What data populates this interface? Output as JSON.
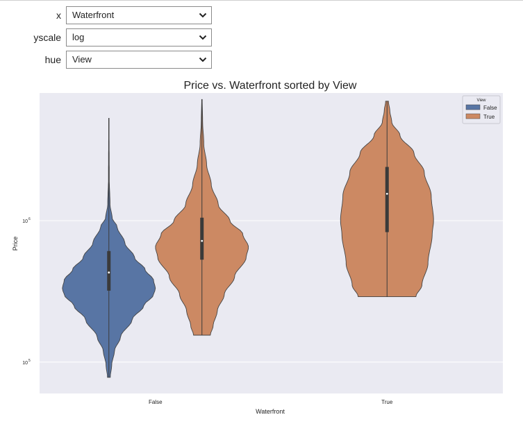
{
  "controls": [
    {
      "label": "x",
      "value": "Waterfront"
    },
    {
      "label": "yscale",
      "value": "log"
    },
    {
      "label": "hue",
      "value": "View"
    }
  ],
  "chart_data": {
    "type": "violin",
    "title": "Price vs. Waterfront sorted by View",
    "xlabel": "Waterfront",
    "ylabel": "Price",
    "yscale": "log",
    "ylim": [
      60000,
      8000000
    ],
    "yticks": [
      {
        "value": 100000,
        "base": "10",
        "exp": "5"
      },
      {
        "value": 1000000,
        "base": "10",
        "exp": "6"
      }
    ],
    "categories": [
      "False",
      "True"
    ],
    "grid": true,
    "legend": {
      "title": "View",
      "position": "top-right",
      "entries": [
        "False",
        "True"
      ]
    },
    "colors": {
      "False": "#5875a4",
      "True": "#cc8963",
      "background": "#eaeaf2"
    },
    "violins": [
      {
        "category": "False",
        "hue": "False",
        "min": 78000,
        "max": 5300000,
        "q1": 320000,
        "median": 430000,
        "q3": 610000,
        "profile": [
          [
            78000,
            0.03
          ],
          [
            95000,
            0.06
          ],
          [
            120000,
            0.12
          ],
          [
            150000,
            0.25
          ],
          [
            200000,
            0.5
          ],
          [
            250000,
            0.75
          ],
          [
            300000,
            0.96
          ],
          [
            330000,
            1.0
          ],
          [
            380000,
            0.96
          ],
          [
            450000,
            0.78
          ],
          [
            550000,
            0.55
          ],
          [
            700000,
            0.34
          ],
          [
            900000,
            0.18
          ],
          [
            1050000,
            0.07
          ],
          [
            1300000,
            0.025
          ],
          [
            2000000,
            0.008
          ],
          [
            5300000,
            0.003
          ]
        ]
      },
      {
        "category": "False",
        "hue": "True",
        "min": 155000,
        "max": 7200000,
        "q1": 530000,
        "median": 720000,
        "q3": 1050000,
        "profile": [
          [
            155000,
            0.18
          ],
          [
            180000,
            0.24
          ],
          [
            230000,
            0.33
          ],
          [
            300000,
            0.48
          ],
          [
            400000,
            0.7
          ],
          [
            550000,
            0.95
          ],
          [
            650000,
            1.0
          ],
          [
            800000,
            0.88
          ],
          [
            1000000,
            0.6
          ],
          [
            1300000,
            0.35
          ],
          [
            1800000,
            0.2
          ],
          [
            2500000,
            0.1
          ],
          [
            3500000,
            0.04
          ],
          [
            5000000,
            0.015
          ],
          [
            7200000,
            0.005
          ]
        ]
      },
      {
        "category": "True",
        "hue": "True",
        "min": 290000,
        "max": 7000000,
        "q1": 830000,
        "median": 1550000,
        "q3": 2400000,
        "profile": [
          [
            290000,
            0.62
          ],
          [
            350000,
            0.75
          ],
          [
            500000,
            0.88
          ],
          [
            800000,
            0.97
          ],
          [
            1000000,
            1.0
          ],
          [
            1500000,
            0.95
          ],
          [
            2200000,
            0.8
          ],
          [
            3000000,
            0.58
          ],
          [
            4000000,
            0.28
          ],
          [
            5000000,
            0.1
          ],
          [
            6000000,
            0.06
          ],
          [
            7000000,
            0.03
          ]
        ]
      }
    ]
  }
}
